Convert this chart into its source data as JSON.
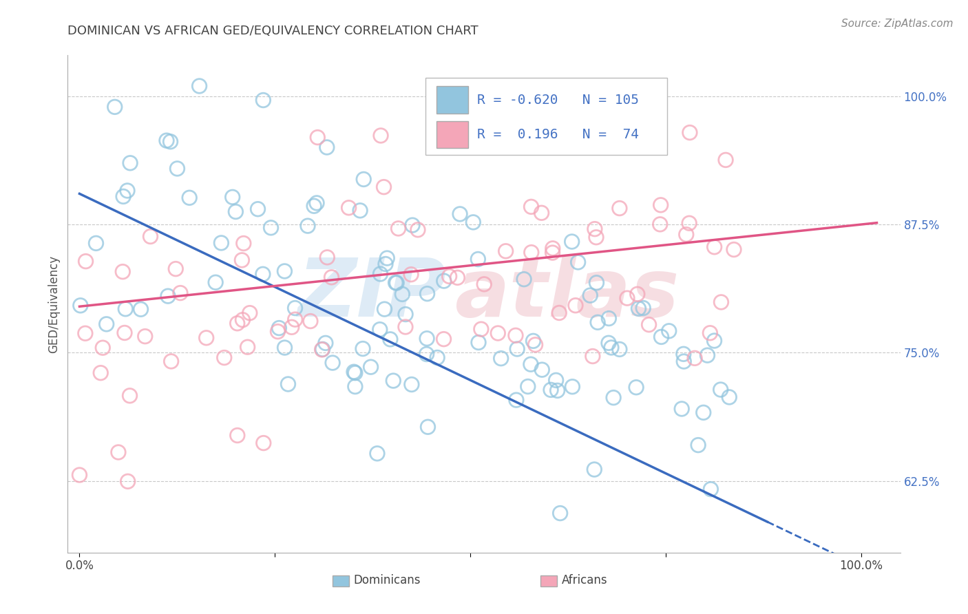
{
  "title": "DOMINICAN VS AFRICAN GED/EQUIVALENCY CORRELATION CHART",
  "source_text": "Source: ZipAtlas.com",
  "ylabel": "GED/Equivalency",
  "y_ticks": [
    0.625,
    0.75,
    0.875,
    1.0
  ],
  "y_tick_labels": [
    "62.5%",
    "75.0%",
    "87.5%",
    "100.0%"
  ],
  "blue_R": -0.62,
  "blue_N": 105,
  "pink_R": 0.196,
  "pink_N": 74,
  "blue_color": "#92c5de",
  "pink_color": "#f4a6b8",
  "blue_line_color": "#3a6bbf",
  "pink_line_color": "#e05585",
  "watermark_zip": "ZIP",
  "watermark_atlas": "atlas",
  "legend_label_blue": "Dominicans",
  "legend_label_pink": "Africans",
  "xlim": [
    -0.015,
    1.05
  ],
  "ylim": [
    0.555,
    1.04
  ],
  "background_color": "#ffffff",
  "grid_color": "#c8c8c8",
  "title_color": "#444444",
  "tick_label_color": "#4472c4",
  "title_fontsize": 13,
  "source_fontsize": 11
}
